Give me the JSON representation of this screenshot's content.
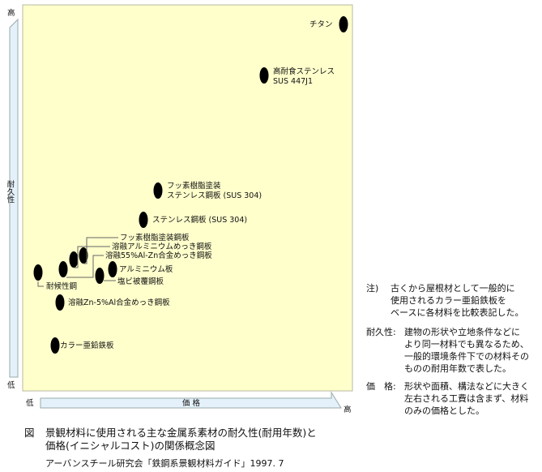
{
  "axes": {
    "y_high": "高",
    "y_low": "低",
    "y_label": "耐久性",
    "x_low": "低",
    "x_high": "高",
    "x_label": "価 格"
  },
  "colors": {
    "plot_bg": "#FFFFCC",
    "arrow_fill": "#E4F1FA",
    "marker": "#000000"
  },
  "materials": [
    {
      "label": "チタン"
    },
    {
      "label": "高耐食ステンレス",
      "label2": "SUS 447J1"
    },
    {
      "label": "フッ素樹脂塗装",
      "label2": "ステンレス鋼板 (SUS 304)"
    },
    {
      "label": "ステンレス鋼板 (SUS 304)"
    },
    {
      "label": "フッ素樹脂塗装鋼板"
    },
    {
      "label": "溶融アルミニウムめっき鋼板"
    },
    {
      "label": "溶融55%Al-Zn合金めっき鋼板"
    },
    {
      "label": "アルミニウム板"
    },
    {
      "label": "塩ビ被覆鋼板"
    },
    {
      "label": "耐候性鋼"
    },
    {
      "label": "溶融Zn-5%Al合金めっき鋼板"
    },
    {
      "label": "カラー亜鉛鉄板"
    }
  ],
  "notes": [
    {
      "head": "注)",
      "text": [
        "古くから屋根材として一般的に",
        "使用されるカラー亜鉛鉄板を",
        "ベースに各材料を比較表記した。"
      ]
    },
    {
      "head": "耐久性:",
      "text": [
        "建物の形状や立地条件などに",
        "より同一材料でも異なるため、",
        "一般的環境条件下での材料その",
        "ものの耐用年数で表した。"
      ]
    },
    {
      "head": "価　格:",
      "text": [
        "形状や面積、構法などに大きく",
        "左右される工費は含まず、材料",
        "のみの価格とした。"
      ]
    }
  ],
  "caption": {
    "fig": "図",
    "line1": "景観材料に使用される主な金属系素材の耐久性(耐用年数)と",
    "line2": "価格(イニシャルコスト)の関係概念図",
    "source": "アーバンスチール研究会「鉄鋼系景観材料ガイド」1997. 7"
  }
}
